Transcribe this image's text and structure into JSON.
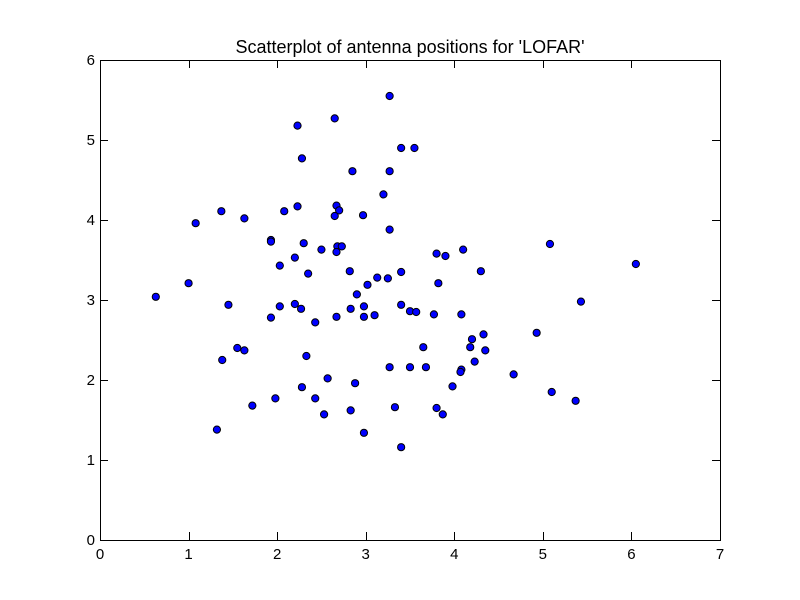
{
  "chart_data": {
    "type": "scatter",
    "title": "Scatterplot of antenna positions for 'LOFAR'",
    "xlabel": "",
    "ylabel": "",
    "xlim": [
      0,
      7
    ],
    "ylim": [
      0,
      6
    ],
    "x_ticks": [
      0,
      1,
      2,
      3,
      4,
      5,
      6,
      7
    ],
    "y_ticks": [
      0,
      1,
      2,
      3,
      4,
      5,
      6
    ],
    "grid": false,
    "point_color": "#0000ff",
    "point_edge_color": "#000000",
    "series": [
      {
        "points": [
          [
            3.27,
            5.55
          ],
          [
            2.65,
            5.27
          ],
          [
            2.23,
            5.18
          ],
          [
            3.4,
            4.9
          ],
          [
            3.55,
            4.9
          ],
          [
            2.28,
            4.77
          ],
          [
            2.85,
            4.61
          ],
          [
            3.27,
            4.61
          ],
          [
            3.2,
            4.32
          ],
          [
            2.67,
            4.18
          ],
          [
            2.23,
            4.17
          ],
          [
            1.37,
            4.11
          ],
          [
            2.08,
            4.11
          ],
          [
            2.7,
            4.12
          ],
          [
            2.65,
            4.05
          ],
          [
            2.97,
            4.06
          ],
          [
            1.63,
            4.02
          ],
          [
            1.08,
            3.96
          ],
          [
            3.27,
            3.88
          ],
          [
            1.93,
            3.75
          ],
          [
            1.93,
            3.73
          ],
          [
            2.3,
            3.71
          ],
          [
            2.68,
            3.67
          ],
          [
            2.73,
            3.67
          ],
          [
            2.5,
            3.63
          ],
          [
            2.67,
            3.6
          ],
          [
            5.08,
            3.7
          ],
          [
            4.1,
            3.63
          ],
          [
            3.8,
            3.58
          ],
          [
            3.9,
            3.55
          ],
          [
            2.2,
            3.53
          ],
          [
            2.03,
            3.43
          ],
          [
            2.82,
            3.36
          ],
          [
            3.4,
            3.35
          ],
          [
            4.3,
            3.36
          ],
          [
            6.05,
            3.45
          ],
          [
            2.35,
            3.33
          ],
          [
            3.13,
            3.28
          ],
          [
            3.25,
            3.27
          ],
          [
            1.0,
            3.21
          ],
          [
            3.82,
            3.21
          ],
          [
            3.02,
            3.19
          ],
          [
            2.9,
            3.07
          ],
          [
            0.63,
            3.04
          ],
          [
            5.43,
            2.98
          ],
          [
            1.45,
            2.94
          ],
          [
            2.03,
            2.92
          ],
          [
            2.2,
            2.95
          ],
          [
            2.27,
            2.89
          ],
          [
            2.83,
            2.89
          ],
          [
            2.98,
            2.92
          ],
          [
            3.4,
            2.94
          ],
          [
            3.5,
            2.86
          ],
          [
            3.57,
            2.85
          ],
          [
            3.77,
            2.82
          ],
          [
            4.08,
            2.82
          ],
          [
            1.93,
            2.78
          ],
          [
            2.67,
            2.79
          ],
          [
            2.98,
            2.79
          ],
          [
            3.1,
            2.81
          ],
          [
            2.43,
            2.72
          ],
          [
            4.93,
            2.59
          ],
          [
            4.33,
            2.57
          ],
          [
            4.2,
            2.51
          ],
          [
            4.18,
            2.41
          ],
          [
            4.35,
            2.37
          ],
          [
            3.65,
            2.41
          ],
          [
            1.55,
            2.4
          ],
          [
            1.63,
            2.37
          ],
          [
            2.33,
            2.3
          ],
          [
            1.38,
            2.25
          ],
          [
            4.23,
            2.23
          ],
          [
            3.27,
            2.16
          ],
          [
            3.5,
            2.16
          ],
          [
            3.68,
            2.16
          ],
          [
            4.08,
            2.13
          ],
          [
            4.07,
            2.1
          ],
          [
            4.67,
            2.07
          ],
          [
            2.57,
            2.02
          ],
          [
            2.88,
            1.96
          ],
          [
            2.28,
            1.91
          ],
          [
            3.98,
            1.92
          ],
          [
            5.1,
            1.85
          ],
          [
            1.98,
            1.77
          ],
          [
            2.43,
            1.77
          ],
          [
            5.37,
            1.74
          ],
          [
            1.72,
            1.68
          ],
          [
            3.33,
            1.66
          ],
          [
            3.8,
            1.65
          ],
          [
            2.83,
            1.62
          ],
          [
            2.53,
            1.57
          ],
          [
            3.87,
            1.57
          ],
          [
            1.32,
            1.38
          ],
          [
            2.98,
            1.34
          ],
          [
            3.4,
            1.16
          ]
        ]
      }
    ]
  }
}
